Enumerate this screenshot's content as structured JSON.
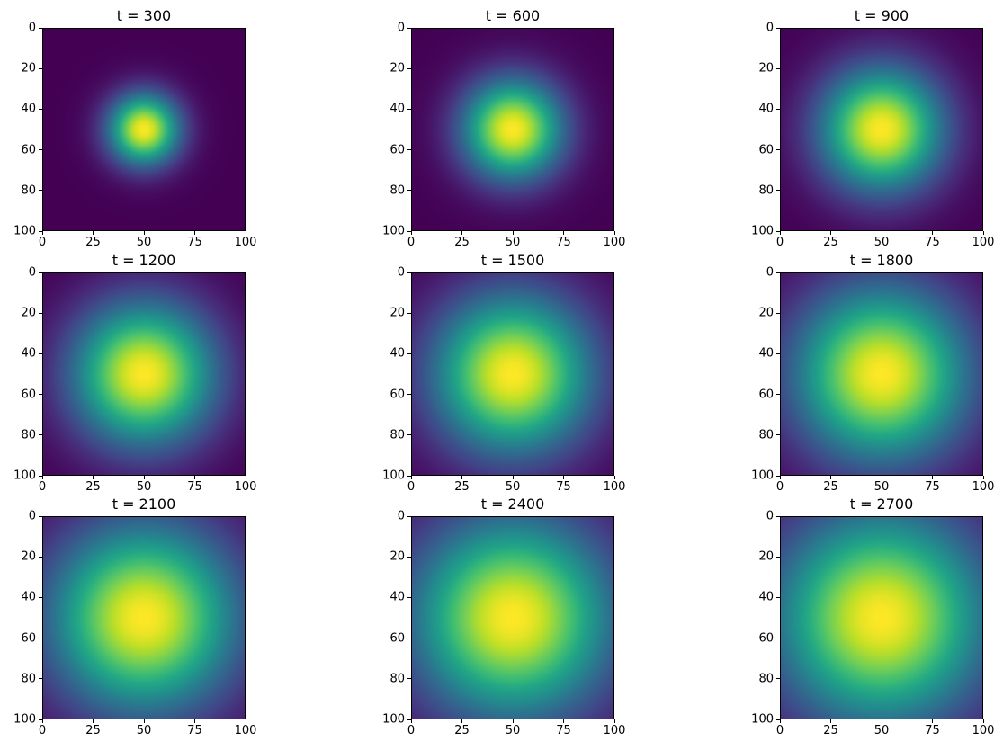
{
  "figure": {
    "background_color": "#ffffff",
    "text_color": "#000000"
  },
  "colormap": {
    "name": "viridis",
    "anchors": [
      "#440154",
      "#482475",
      "#414487",
      "#355f8d",
      "#2a788e",
      "#21918c",
      "#22a884",
      "#44bf70",
      "#7ad151",
      "#bddf26",
      "#fde725"
    ]
  },
  "chart_data": {
    "type": "heatmap",
    "grid": {
      "rows": 3,
      "cols": 3
    },
    "x_range": [
      0,
      100
    ],
    "y_range": [
      0,
      100
    ],
    "y_axis_inverted": true,
    "x_ticks": [
      0,
      25,
      50,
      75,
      100
    ],
    "y_ticks": [
      0,
      20,
      40,
      60,
      80,
      100
    ],
    "legend": "none",
    "colorbar": "none",
    "frames": [
      {
        "title": "t = 300",
        "t": 300,
        "peak_center": [
          50,
          50
        ],
        "gaussian_sigma": 17.0,
        "peak_normalized_value": 1.0
      },
      {
        "title": "t = 600",
        "t": 600,
        "peak_center": [
          50,
          50
        ],
        "gaussian_sigma": 24.0,
        "peak_normalized_value": 1.0
      },
      {
        "title": "t = 900",
        "t": 900,
        "peak_center": [
          50,
          50
        ],
        "gaussian_sigma": 29.4,
        "peak_normalized_value": 1.0
      },
      {
        "title": "t = 1200",
        "t": 1200,
        "peak_center": [
          50,
          50
        ],
        "gaussian_sigma": 34.0,
        "peak_normalized_value": 1.0
      },
      {
        "title": "t = 1500",
        "t": 1500,
        "peak_center": [
          50,
          50
        ],
        "gaussian_sigma": 38.0,
        "peak_normalized_value": 1.0
      },
      {
        "title": "t = 1800",
        "t": 1800,
        "peak_center": [
          50,
          50
        ],
        "gaussian_sigma": 41.6,
        "peak_normalized_value": 1.0
      },
      {
        "title": "t = 2100",
        "t": 2100,
        "peak_center": [
          50,
          50
        ],
        "gaussian_sigma": 45.0,
        "peak_normalized_value": 1.0
      },
      {
        "title": "t = 2400",
        "t": 2400,
        "peak_center": [
          50,
          50
        ],
        "gaussian_sigma": 48.1,
        "peak_normalized_value": 1.0
      },
      {
        "title": "t = 2700",
        "t": 2700,
        "peak_center": [
          50,
          50
        ],
        "gaussian_sigma": 51.0,
        "peak_normalized_value": 1.0
      }
    ]
  }
}
